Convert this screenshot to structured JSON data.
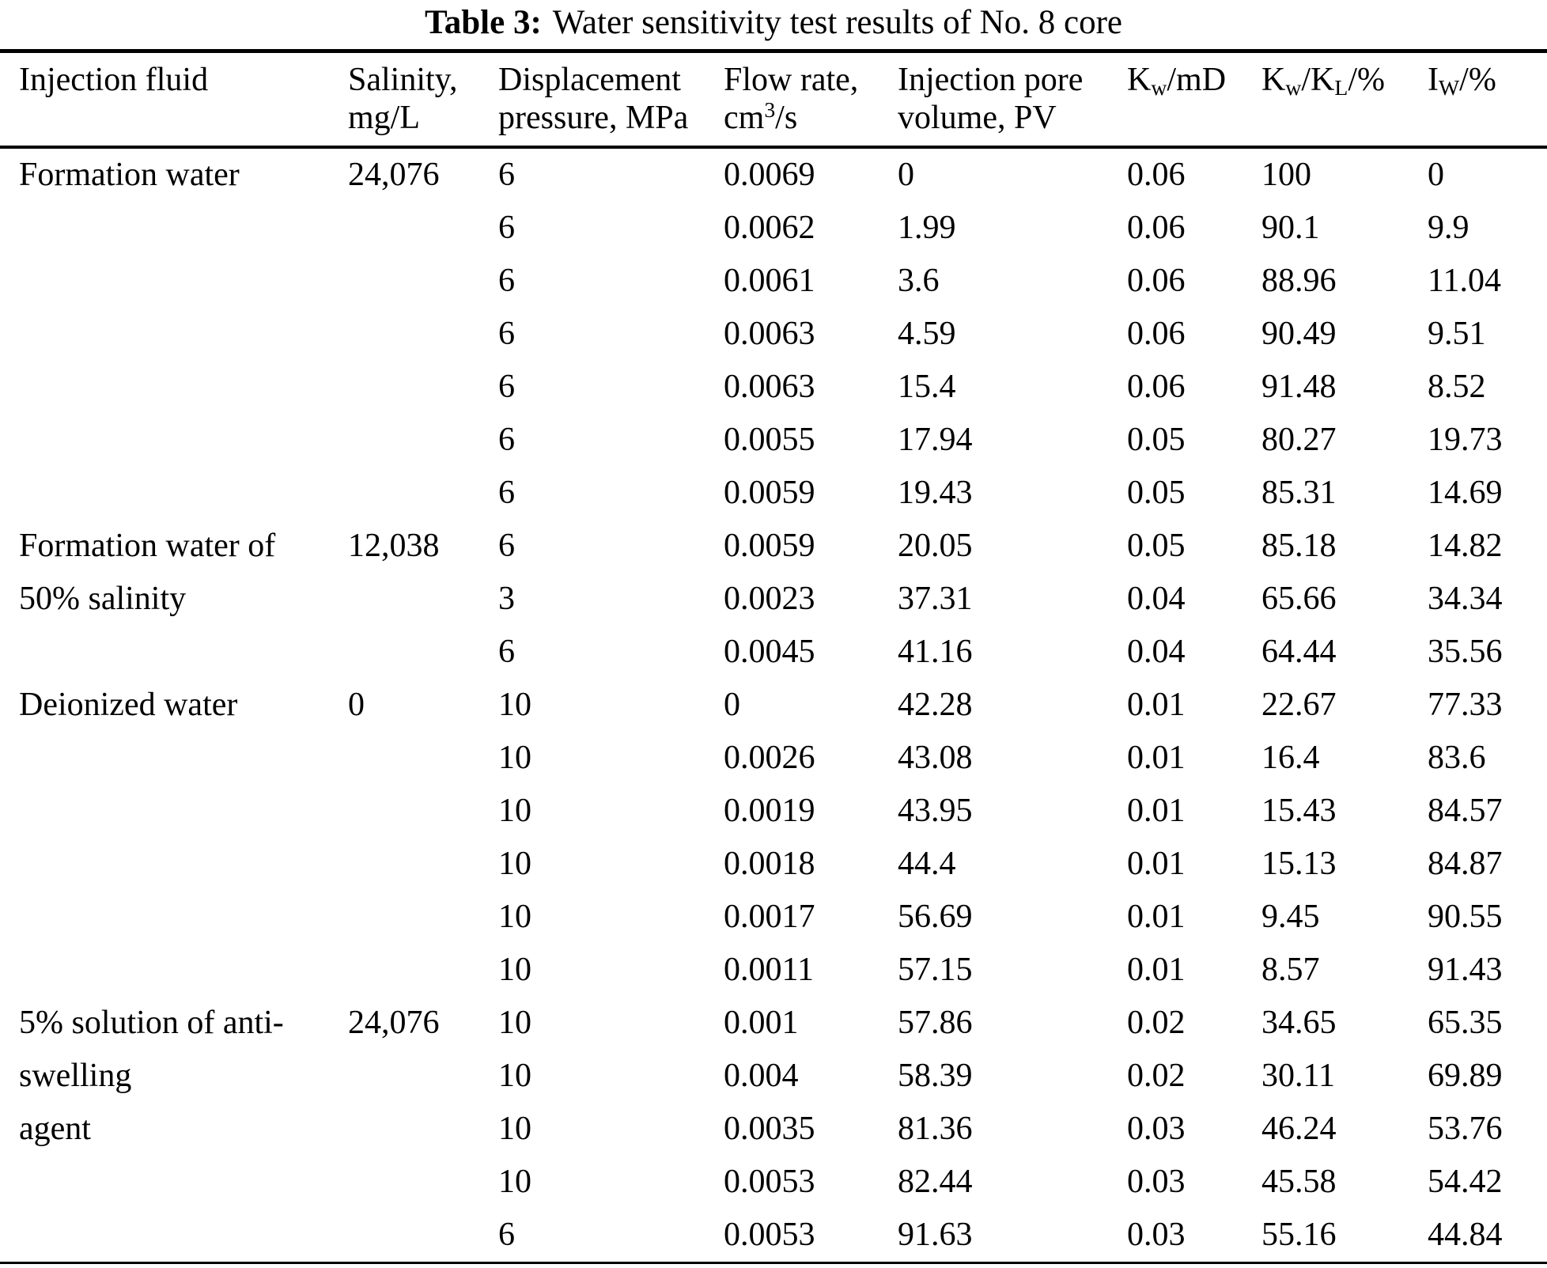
{
  "table": {
    "caption": {
      "label": "Table 3:",
      "text": "Water sensitivity test results of No. 8 core"
    },
    "headers": {
      "fluid": {
        "line1": "Injection fluid"
      },
      "salinity": {
        "line1": "Salinity,",
        "line2": "mg/L"
      },
      "pressure": {
        "line1": "Displacement",
        "line2": "pressure, MPa"
      },
      "flow": {
        "line1": "Flow rate,",
        "unit_base": "cm",
        "unit_sup": "3",
        "unit_rest": "/s"
      },
      "pv": {
        "line1": "Injection pore",
        "line2": "volume, PV"
      },
      "kw": {
        "base": "K",
        "sub": "w",
        "rest": "/mD"
      },
      "kwkl": {
        "base1": "K",
        "sub1": "w",
        "base2": "/K",
        "sub2": "L",
        "base3": "/%"
      },
      "iw": {
        "base": "I",
        "sub": "W",
        "rest": "/%"
      }
    },
    "groups": [
      {
        "fluid": "Formation water",
        "salinity": "24,076",
        "rows": [
          {
            "pressure": "6",
            "flow": "0.0069",
            "pv": "0",
            "kw": "0.06",
            "kwkl": "100",
            "iw": "0"
          },
          {
            "pressure": "6",
            "flow": "0.0062",
            "pv": "1.99",
            "kw": "0.06",
            "kwkl": "90.1",
            "iw": "9.9"
          },
          {
            "pressure": "6",
            "flow": "0.0061",
            "pv": "3.6",
            "kw": "0.06",
            "kwkl": "88.96",
            "iw": "11.04"
          },
          {
            "pressure": "6",
            "flow": "0.0063",
            "pv": "4.59",
            "kw": "0.06",
            "kwkl": "90.49",
            "iw": "9.51"
          },
          {
            "pressure": "6",
            "flow": "0.0063",
            "pv": "15.4",
            "kw": "0.06",
            "kwkl": "91.48",
            "iw": "8.52"
          },
          {
            "pressure": "6",
            "flow": "0.0055",
            "pv": "17.94",
            "kw": "0.05",
            "kwkl": "80.27",
            "iw": "19.73"
          },
          {
            "pressure": "6",
            "flow": "0.0059",
            "pv": "19.43",
            "kw": "0.05",
            "kwkl": "85.31",
            "iw": "14.69"
          }
        ]
      },
      {
        "fluid": "Formation water of\n50% salinity",
        "salinity": "12,038",
        "rows": [
          {
            "pressure": "6",
            "flow": "0.0059",
            "pv": "20.05",
            "kw": "0.05",
            "kwkl": "85.18",
            "iw": "14.82"
          },
          {
            "pressure": "3",
            "flow": "0.0023",
            "pv": "37.31",
            "kw": "0.04",
            "kwkl": "65.66",
            "iw": "34.34"
          },
          {
            "pressure": "6",
            "flow": "0.0045",
            "pv": "41.16",
            "kw": "0.04",
            "kwkl": "64.44",
            "iw": "35.56"
          }
        ]
      },
      {
        "fluid": "Deionized water",
        "salinity": "0",
        "rows": [
          {
            "pressure": "10",
            "flow": "0",
            "pv": "42.28",
            "kw": "0.01",
            "kwkl": "22.67",
            "iw": "77.33"
          },
          {
            "pressure": "10",
            "flow": "0.0026",
            "pv": "43.08",
            "kw": "0.01",
            "kwkl": "16.4",
            "iw": "83.6"
          },
          {
            "pressure": "10",
            "flow": "0.0019",
            "pv": "43.95",
            "kw": "0.01",
            "kwkl": "15.43",
            "iw": "84.57"
          },
          {
            "pressure": "10",
            "flow": "0.0018",
            "pv": "44.4",
            "kw": "0.01",
            "kwkl": "15.13",
            "iw": "84.87"
          },
          {
            "pressure": "10",
            "flow": "0.0017",
            "pv": "56.69",
            "kw": "0.01",
            "kwkl": "9.45",
            "iw": "90.55"
          },
          {
            "pressure": "10",
            "flow": "0.0011",
            "pv": "57.15",
            "kw": "0.01",
            "kwkl": "8.57",
            "iw": "91.43"
          }
        ]
      },
      {
        "fluid": "5% solution of anti-\nswelling\nagent",
        "salinity": "24,076",
        "rows": [
          {
            "pressure": "10",
            "flow": "0.001",
            "pv": "57.86",
            "kw": "0.02",
            "kwkl": "34.65",
            "iw": "65.35"
          },
          {
            "pressure": "10",
            "flow": "0.004",
            "pv": "58.39",
            "kw": "0.02",
            "kwkl": "30.11",
            "iw": "69.89"
          },
          {
            "pressure": "10",
            "flow": "0.0035",
            "pv": "81.36",
            "kw": "0.03",
            "kwkl": "46.24",
            "iw": "53.76"
          },
          {
            "pressure": "10",
            "flow": "0.0053",
            "pv": "82.44",
            "kw": "0.03",
            "kwkl": "45.58",
            "iw": "54.42"
          },
          {
            "pressure": "6",
            "flow": "0.0053",
            "pv": "91.63",
            "kw": "0.03",
            "kwkl": "55.16",
            "iw": "44.84"
          }
        ]
      }
    ]
  }
}
